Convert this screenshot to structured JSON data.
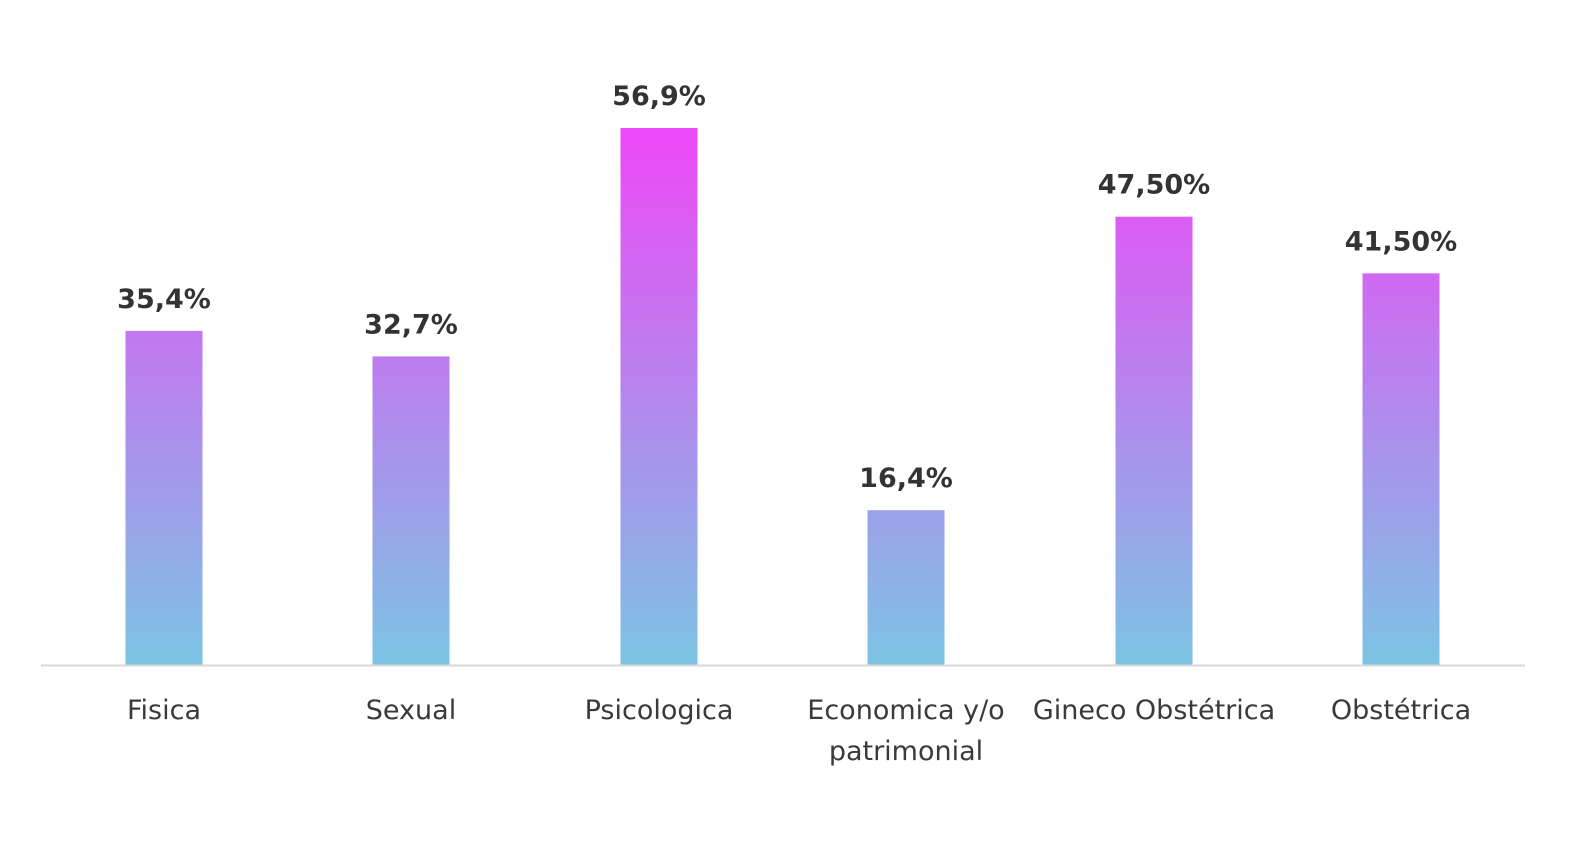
{
  "chart_data": {
    "type": "bar",
    "title": "",
    "xlabel": "",
    "ylabel": "",
    "ylim": [
      0,
      60
    ],
    "grid": false,
    "legend": "none",
    "categories": [
      [
        "Fisica"
      ],
      [
        "Sexual"
      ],
      [
        "Psicologica"
      ],
      [
        "Economica y/o",
        "patrimonial"
      ],
      [
        "Gineco Obstétrica"
      ],
      [
        "Obstétrica"
      ]
    ],
    "values": [
      35.4,
      32.7,
      56.9,
      16.4,
      47.5,
      41.5
    ],
    "value_labels": [
      "35,4%",
      "32,7%",
      "56,9%",
      "16,4%",
      "47,50%",
      "41,50%"
    ],
    "colors": {
      "bar_gradient_top": "#ee48f7",
      "bar_gradient_bottom": "#7cc4e4",
      "axis_line": "#d9d9d9",
      "label_text": "#333333"
    }
  }
}
